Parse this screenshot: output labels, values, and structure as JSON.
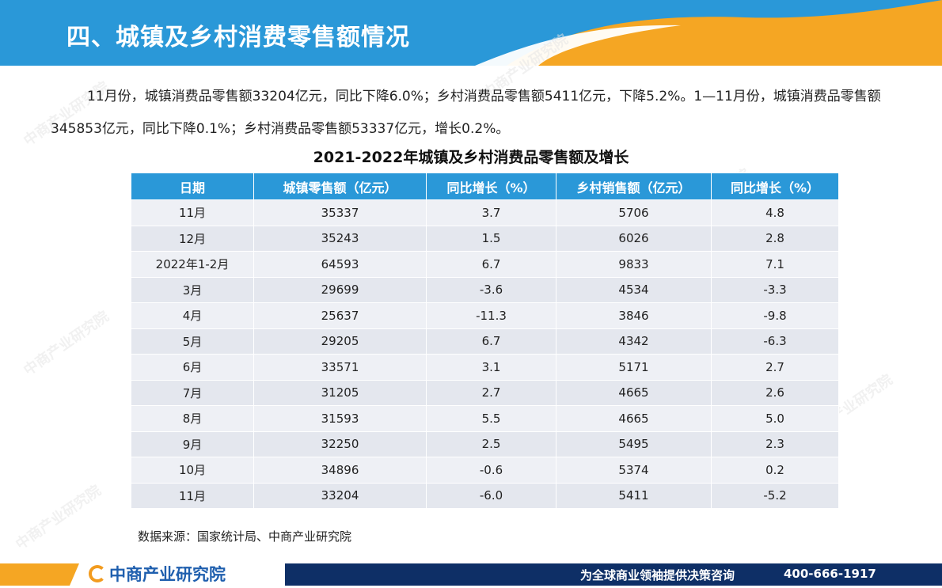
{
  "header": {
    "title": "四、城镇及乡村消费零售额情况"
  },
  "paragraph": "11月份，城镇消费品零售额33204亿元，同比下降6.0%；乡村消费品零售额5411亿元，下降5.2%。1—11月份，城镇消费品零售额345853亿元，同比下降0.1%；乡村消费品零售额53337亿元，增长0.2%。",
  "table": {
    "title": "2021-2022年城镇及乡村消费品零售额及增长",
    "headers": [
      "日期",
      "城镇零售额（亿元）",
      "同比增长（%）",
      "乡村销售额（亿元）",
      "同比增长（%）"
    ],
    "rows": [
      [
        "11月",
        "35337",
        "3.7",
        "5706",
        "4.8"
      ],
      [
        "12月",
        "35243",
        "1.5",
        "6026",
        "2.8"
      ],
      [
        "2022年1-2月",
        "64593",
        "6.7",
        "9833",
        "7.1"
      ],
      [
        "3月",
        "29699",
        "-3.6",
        "4534",
        "-3.3"
      ],
      [
        "4月",
        "25637",
        "-11.3",
        "3846",
        "-9.8"
      ],
      [
        "5月",
        "29205",
        "6.7",
        "4342",
        "-6.3"
      ],
      [
        "6月",
        "33571",
        "3.1",
        "5171",
        "2.7"
      ],
      [
        "7月",
        "31205",
        "2.7",
        "4665",
        "2.6"
      ],
      [
        "8月",
        "31593",
        "5.5",
        "4665",
        "5.0"
      ],
      [
        "9月",
        "32250",
        "2.5",
        "5495",
        "2.3"
      ],
      [
        "10月",
        "34896",
        "-0.6",
        "5374",
        "0.2"
      ],
      [
        "11月",
        "33204",
        "-6.0",
        "5411",
        "-5.2"
      ]
    ]
  },
  "source": "数据来源：国家统计局、中商产业研究院",
  "footer": {
    "logo": "中商产业研究院",
    "slogan": "为全球商业领袖提供决策咨询",
    "phone": "400-666-1917"
  },
  "watermark": "中商产业研究院",
  "colors": {
    "header_blue": "#2a98d8",
    "accent_orange": "#f5a623",
    "footer_navy": "#0e2f66"
  }
}
